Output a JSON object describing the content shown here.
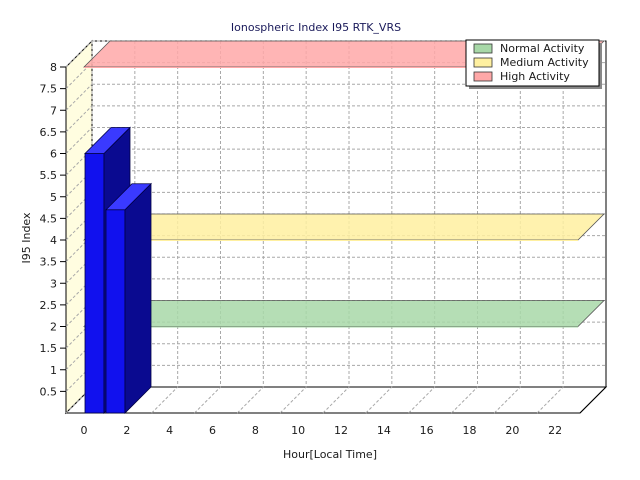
{
  "chart_data": {
    "type": "bar",
    "title": "Ionospheric Index I95 RTK_VRS",
    "xlabel": "Hour[Local Time]",
    "ylabel": "I95 Index",
    "x_ticks": [
      "0",
      "2",
      "4",
      "6",
      "8",
      "10",
      "12",
      "14",
      "16",
      "18",
      "20",
      "22"
    ],
    "y_ticks": [
      "0.5",
      "1",
      "1.5",
      "2",
      "2.5",
      "3",
      "3.5",
      "4",
      "4.5",
      "5",
      "5.5",
      "6",
      "6.5",
      "7",
      "7.5",
      "8"
    ],
    "ylim": [
      0,
      8
    ],
    "xlim": [
      0,
      24
    ],
    "grid": true,
    "legend_position": "top-right",
    "series": [
      {
        "x": [
          0,
          1
        ],
        "values": [
          6.0,
          4.7
        ],
        "color": "#1111ee"
      }
    ],
    "bands": [
      {
        "name": "Normal Activity",
        "ymin": 2.0,
        "ymax": 2.0,
        "color": "#a8d8a8"
      },
      {
        "name": "Medium Activity",
        "ymin": 4.0,
        "ymax": 4.0,
        "color": "#fff0a0"
      },
      {
        "name": "High Activity",
        "ymin": 8.0,
        "ymax": 8.0,
        "color": "#ffa8a8"
      }
    ]
  },
  "colors": {
    "back_wall": "#ffffff",
    "side_wall": "#fffde0",
    "floor": "#ffffff",
    "grid": "#a8a8a8",
    "bar_front": "#1111ee",
    "bar_top": "#3a3aff",
    "bar_side": "#0a0a90"
  }
}
